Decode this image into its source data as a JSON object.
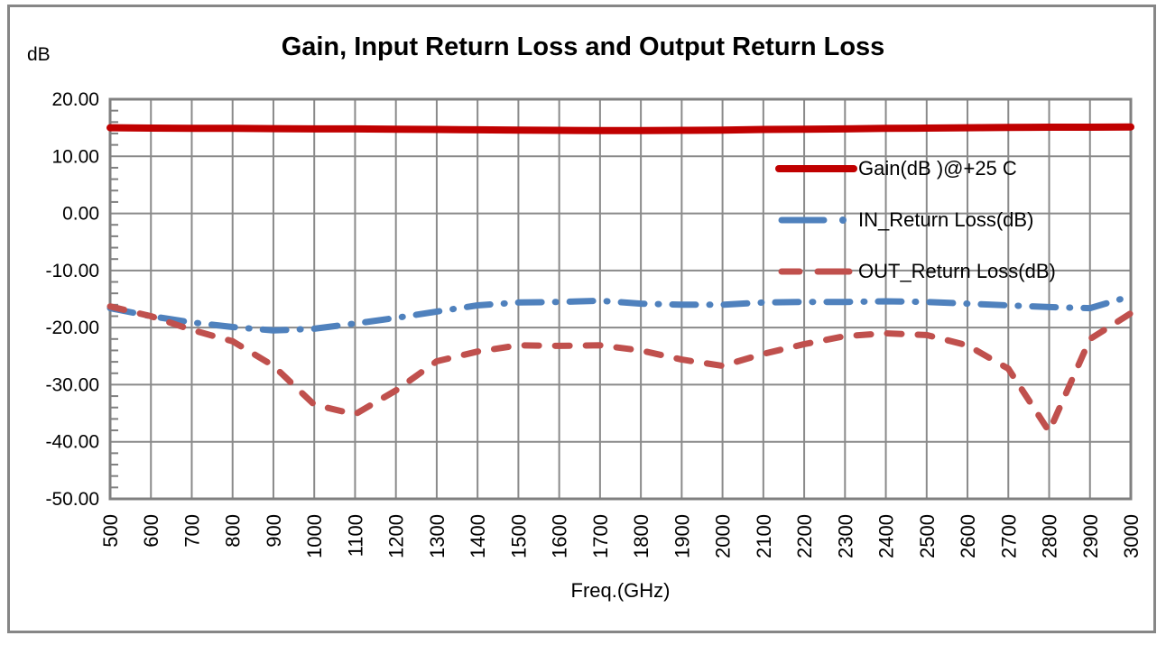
{
  "chart": {
    "title": "Gain, Input Return Loss and Output Return Loss",
    "y_axis_title": "dB",
    "x_axis_title": "Freq.(GHz)"
  },
  "chart_data": {
    "type": "line",
    "title": "Gain, Input Return Loss and Output Return Loss",
    "xlabel": "Freq.(GHz)",
    "ylabel": "dB",
    "xlim": [
      500,
      3000
    ],
    "ylim": [
      -50,
      20
    ],
    "x_tick_step": 100,
    "y_tick_step": 10,
    "y_minor_tick_step": 2,
    "grid": true,
    "grid_color": "#8A8A8A",
    "axis_color": "#808080",
    "legend_position": "inside-upper-right",
    "x": [
      500,
      600,
      700,
      800,
      900,
      1000,
      1100,
      1200,
      1300,
      1400,
      1500,
      1600,
      1700,
      1800,
      1900,
      2000,
      2100,
      2200,
      2300,
      2400,
      2500,
      2600,
      2700,
      2800,
      2900,
      3000
    ],
    "x_tick_labels": [
      "500",
      "600",
      "700",
      "800",
      "900",
      "1000",
      "1100",
      "1200",
      "1300",
      "1400",
      "1500",
      "1600",
      "1700",
      "1800",
      "1900",
      "2000",
      "2100",
      "2200",
      "2300",
      "2400",
      "2500",
      "2600",
      "2700",
      "2800",
      "2900",
      "3000"
    ],
    "y_tick_labels": [
      "20.00",
      "10.00",
      "0.00",
      "-10.00",
      "-20.00",
      "-30.00",
      "-40.00",
      "-50.00"
    ],
    "series": [
      {
        "name": "Gain(dB )@+25 C",
        "color": "#C00000",
        "line_style": "solid",
        "values": [
          15.0,
          14.95,
          14.9,
          14.9,
          14.85,
          14.8,
          14.8,
          14.75,
          14.7,
          14.65,
          14.6,
          14.55,
          14.5,
          14.5,
          14.55,
          14.6,
          14.7,
          14.75,
          14.8,
          14.9,
          14.95,
          15.0,
          15.05,
          15.1,
          15.1,
          15.15
        ]
      },
      {
        "name": "IN_Return Loss(dB)",
        "color": "#4F81BD",
        "line_style": "dash-dot",
        "values": [
          -16.6,
          -18.0,
          -19.1,
          -19.9,
          -20.5,
          -20.2,
          -19.3,
          -18.3,
          -17.2,
          -16.1,
          -15.6,
          -15.5,
          -15.3,
          -15.8,
          -16.0,
          -16.0,
          -15.6,
          -15.5,
          -15.5,
          -15.4,
          -15.5,
          -15.8,
          -16.1,
          -16.4,
          -16.6,
          -14.5
        ]
      },
      {
        "name": "OUT_Return Loss(dB)",
        "color": "#C0504D",
        "line_style": "dashed",
        "values": [
          -16.3,
          -18.0,
          -20.4,
          -22.4,
          -26.7,
          -33.5,
          -35.2,
          -31.0,
          -25.9,
          -24.2,
          -23.1,
          -23.2,
          -23.1,
          -24.0,
          -25.6,
          -26.7,
          -24.6,
          -22.9,
          -21.5,
          -21.0,
          -21.3,
          -23.1,
          -27.2,
          -38.2,
          -22.0,
          -17.5
        ]
      }
    ]
  }
}
